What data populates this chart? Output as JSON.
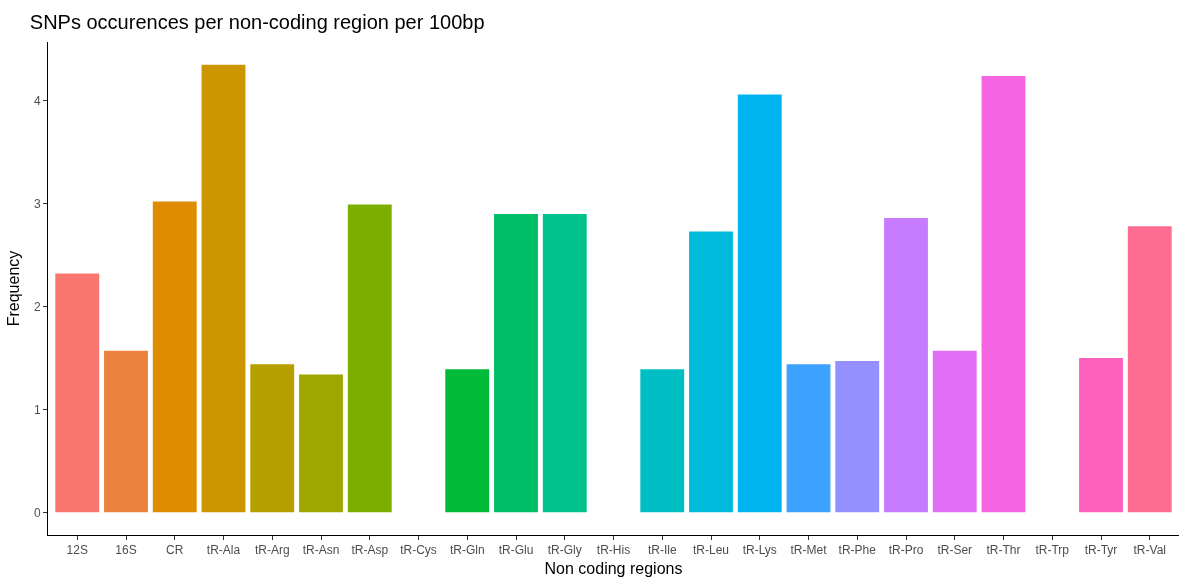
{
  "chart_data": {
    "type": "bar",
    "title": "SNPs occurences per non-coding region per 100bp",
    "xlabel": "Non coding regions",
    "ylabel": "Frequency",
    "categories": [
      "12S",
      "16S",
      "CR",
      "tR-Ala",
      "tR-Arg",
      "tR-Asn",
      "tR-Asp",
      "tR-Cys",
      "tR-Gln",
      "tR-Glu",
      "tR-Gly",
      "tR-His",
      "tR-Ile",
      "tR-Leu",
      "tR-Lys",
      "tR-Met",
      "tR-Phe",
      "tR-Pro",
      "tR-Ser",
      "tR-Thr",
      "tR-Trp",
      "tR-Tyr",
      "tR-Val"
    ],
    "values": [
      2.32,
      1.57,
      3.02,
      4.35,
      1.44,
      1.34,
      2.99,
      0,
      1.39,
      2.9,
      2.9,
      0,
      1.39,
      2.73,
      4.06,
      1.44,
      1.47,
      2.86,
      1.57,
      4.24,
      0,
      1.5,
      2.78
    ],
    "colors": [
      "#f8766d",
      "#ec823c",
      "#de8c00",
      "#cd9600",
      "#b79f00",
      "#9da700",
      "#7cae00",
      "#49b500",
      "#00ba38",
      "#00be67",
      "#00c08b",
      "#00c1a9",
      "#00bfc4",
      "#00bbdc",
      "#00b4f0",
      "#3da1ff",
      "#9590ff",
      "#c77cff",
      "#e36ef6",
      "#f564e3",
      "#ff61c3",
      "#ff62bc",
      "#ff6c91"
    ],
    "ylim": [
      -0.22,
      4.57
    ],
    "yticks": [
      0,
      1,
      2,
      3,
      4
    ],
    "grid": false
  }
}
